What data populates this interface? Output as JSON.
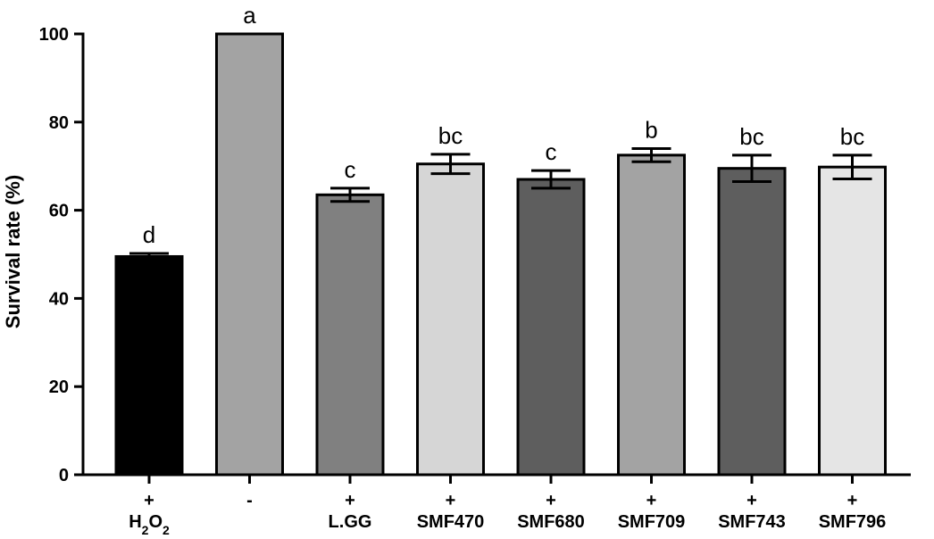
{
  "chart_data": {
    "type": "bar",
    "ylabel": "Survival rate (%)",
    "xlabel": "",
    "ylim": [
      0,
      100
    ],
    "yticks": [
      0,
      20,
      40,
      60,
      80,
      100
    ],
    "grid": false,
    "categories": [
      {
        "sign": "+",
        "name": "H2O2",
        "name_parts": [
          {
            "t": "H"
          },
          {
            "t": "2",
            "sub": true
          },
          {
            "t": "O"
          },
          {
            "t": "2",
            "sub": true
          }
        ]
      },
      {
        "sign": "-",
        "name": ""
      },
      {
        "sign": "+",
        "name": "L.GG"
      },
      {
        "sign": "+",
        "name": "SMF470"
      },
      {
        "sign": "+",
        "name": "SMF680"
      },
      {
        "sign": "+",
        "name": "SMF709"
      },
      {
        "sign": "+",
        "name": "SMF743"
      },
      {
        "sign": "+",
        "name": "SMF796"
      }
    ],
    "values": [
      49.5,
      100,
      63.5,
      70.5,
      67,
      72.5,
      69.5,
      69.8
    ],
    "errors": [
      0.7,
      0,
      1.5,
      2.2,
      2.0,
      1.5,
      3.0,
      2.7
    ],
    "significance": [
      "d",
      "a",
      "c",
      "bc",
      "c",
      "b",
      "bc",
      "bc"
    ],
    "colors": [
      "#000000",
      "#a3a3a3",
      "#808080",
      "#d6d6d6",
      "#5e5e5e",
      "#a3a3a3",
      "#5e5e5e",
      "#e5e5e5"
    ]
  }
}
